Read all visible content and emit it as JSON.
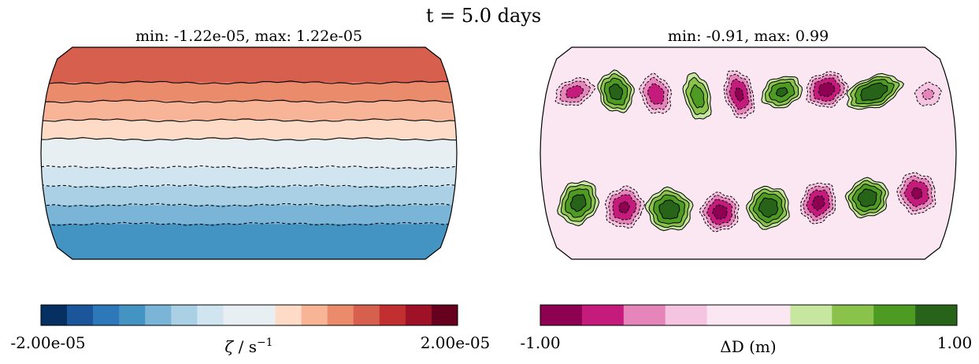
{
  "figure": {
    "title": "t = 5.0 days"
  },
  "chart_data": [
    {
      "type": "heatmap",
      "title": "min: -1.22e-05, max: 1.22e-05",
      "projection": "robinson",
      "field": "zonal relative vorticity bands",
      "colorbar": {
        "label_symbol": "ζ",
        "label_rest": " / s",
        "label_exp": "−1",
        "min_label": "-2.00e-05",
        "max_label": "2.00e-05",
        "range": [
          -2e-05,
          2e-05
        ],
        "colors": [
          "#053061",
          "#1a5699",
          "#2c78b8",
          "#4393c3",
          "#7ab5d7",
          "#aad0e5",
          "#d1e5f0",
          "#e7eff3",
          "#e7eff3",
          "#fddbc7",
          "#f7b496",
          "#ea8b6c",
          "#d6604d",
          "#c22f31",
          "#9e1127",
          "#67001f"
        ]
      },
      "bands": [
        {
          "lat_from": 90,
          "lat_to": 60,
          "color": "#d6604d"
        },
        {
          "lat_from": 60,
          "lat_to": 44,
          "color": "#ea8b6c"
        },
        {
          "lat_from": 44,
          "lat_to": 28,
          "color": "#f7b496"
        },
        {
          "lat_from": 28,
          "lat_to": 12,
          "color": "#fddbc7"
        },
        {
          "lat_from": 12,
          "lat_to": -12,
          "color": "#e7eff3"
        },
        {
          "lat_from": -12,
          "lat_to": -28,
          "color": "#d1e5f0"
        },
        {
          "lat_from": -28,
          "lat_to": -44,
          "color": "#aad0e5"
        },
        {
          "lat_from": -44,
          "lat_to": -60,
          "color": "#7ab5d7"
        },
        {
          "lat_from": -60,
          "lat_to": -90,
          "color": "#4393c3"
        }
      ],
      "contours": [
        {
          "lat": 60,
          "style": "solid"
        },
        {
          "lat": 44,
          "style": "solid"
        },
        {
          "lat": 28,
          "style": "solid"
        },
        {
          "lat": 12,
          "style": "solid"
        },
        {
          "lat": -12,
          "style": "dashed"
        },
        {
          "lat": -28,
          "style": "dashed"
        },
        {
          "lat": -44,
          "style": "dashed"
        },
        {
          "lat": -60,
          "style": "dashed"
        }
      ]
    },
    {
      "type": "heatmap",
      "title": "min: -0.91, max: 0.99",
      "projection": "robinson",
      "field": "depth perturbation wave pattern",
      "background_color": "#fbe7f2",
      "colorbar": {
        "label": "ΔD (m)",
        "min_label": "-1.00",
        "max_label": "1.00",
        "range": [
          -1.0,
          1.0
        ],
        "colors": [
          "#8e0152",
          "#c51b7d",
          "#e685b9",
          "#f4c4e0",
          "#fbe7f2",
          "#fbe7f2",
          "#c7e7a0",
          "#8ac24c",
          "#4e9b24",
          "#276419"
        ]
      },
      "cells": [
        {
          "lon": -155,
          "lat": 52,
          "sign": -1,
          "amp": 0.7,
          "rx": 22,
          "ry": 14,
          "tilt": -20
        },
        {
          "lon": -118,
          "lat": 52,
          "sign": 1,
          "amp": 0.9,
          "rx": 18,
          "ry": 22,
          "tilt": -20
        },
        {
          "lon": -82,
          "lat": 50,
          "sign": -1,
          "amp": 0.75,
          "rx": 16,
          "ry": 22,
          "tilt": -20
        },
        {
          "lon": -45,
          "lat": 48,
          "sign": 1,
          "amp": 0.72,
          "rx": 14,
          "ry": 26,
          "tilt": -15
        },
        {
          "lon": -8,
          "lat": 50,
          "sign": -1,
          "amp": 0.85,
          "rx": 15,
          "ry": 26,
          "tilt": -15
        },
        {
          "lon": 30,
          "lat": 52,
          "sign": 1,
          "amp": 0.85,
          "rx": 22,
          "ry": 16,
          "tilt": -20
        },
        {
          "lon": 70,
          "lat": 54,
          "sign": -1,
          "amp": 0.91,
          "rx": 22,
          "ry": 18,
          "tilt": -20
        },
        {
          "lon": 112,
          "lat": 52,
          "sign": 1,
          "amp": 0.99,
          "rx": 30,
          "ry": 16,
          "tilt": -20
        },
        {
          "lon": 160,
          "lat": 50,
          "sign": -1,
          "amp": 0.45,
          "rx": 16,
          "ry": 14,
          "tilt": -20
        },
        {
          "lon": -150,
          "lat": -42,
          "sign": 1,
          "amp": 0.9,
          "rx": 20,
          "ry": 24,
          "tilt": 30
        },
        {
          "lon": -110,
          "lat": -46,
          "sign": -1,
          "amp": 0.85,
          "rx": 20,
          "ry": 22,
          "tilt": 20
        },
        {
          "lon": -70,
          "lat": -48,
          "sign": 1,
          "amp": 0.95,
          "rx": 24,
          "ry": 22,
          "tilt": 15
        },
        {
          "lon": -25,
          "lat": -50,
          "sign": -1,
          "amp": 0.9,
          "rx": 20,
          "ry": 20,
          "tilt": 15
        },
        {
          "lon": 18,
          "lat": -46,
          "sign": 1,
          "amp": 0.95,
          "rx": 22,
          "ry": 22,
          "tilt": 15
        },
        {
          "lon": 62,
          "lat": -42,
          "sign": -1,
          "amp": 0.88,
          "rx": 18,
          "ry": 22,
          "tilt": 20
        },
        {
          "lon": 105,
          "lat": -38,
          "sign": 1,
          "amp": 0.95,
          "rx": 22,
          "ry": 20,
          "tilt": -20
        },
        {
          "lon": 148,
          "lat": -34,
          "sign": -1,
          "amp": 0.85,
          "rx": 20,
          "ry": 22,
          "tilt": -20
        }
      ]
    }
  ]
}
